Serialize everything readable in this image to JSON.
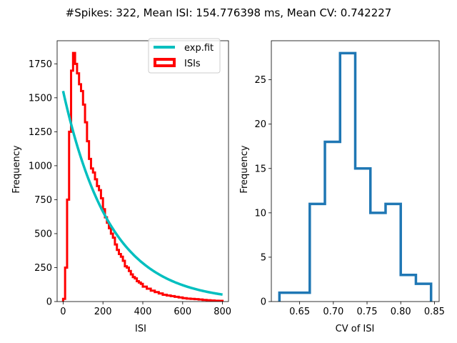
{
  "figure": {
    "suptitle": "#Spikes: 322, Mean ISI: 154.776398 ms, Mean CV: 0.742227"
  },
  "colors": {
    "isi_hist": "#ff0000",
    "exp_fit": "#00bfbf",
    "cv_hist": "#1f77b4",
    "axes": "#000000"
  },
  "chart_data": [
    {
      "type": "line",
      "panel": "left",
      "xlabel": "ISI",
      "ylabel": "Frequency",
      "xlim": [
        -30,
        830
      ],
      "ylim": [
        0,
        1920
      ],
      "xticks": [
        0,
        200,
        400,
        600,
        800
      ],
      "yticks": [
        0,
        250,
        500,
        750,
        1000,
        1250,
        1500,
        1750
      ],
      "legend": {
        "location": "top-right",
        "entries": [
          "exp.fit",
          "ISIs"
        ]
      },
      "series": [
        {
          "name": "ISIs",
          "style": "step",
          "bin_edges": [
            0,
            10,
            20,
            30,
            40,
            50,
            60,
            70,
            80,
            90,
            100,
            110,
            120,
            130,
            140,
            150,
            160,
            170,
            180,
            190,
            200,
            210,
            220,
            230,
            240,
            250,
            260,
            270,
            280,
            290,
            300,
            310,
            320,
            330,
            340,
            350,
            360,
            370,
            380,
            390,
            400,
            420,
            440,
            460,
            480,
            500,
            520,
            540,
            560,
            580,
            600,
            620,
            640,
            660,
            680,
            700,
            720,
            740,
            760,
            780,
            800
          ],
          "counts": [
            20,
            250,
            750,
            1250,
            1700,
            1830,
            1750,
            1680,
            1600,
            1550,
            1450,
            1320,
            1180,
            1050,
            980,
            950,
            900,
            850,
            820,
            760,
            680,
            620,
            580,
            540,
            500,
            470,
            420,
            380,
            350,
            330,
            300,
            260,
            250,
            225,
            200,
            180,
            170,
            150,
            140,
            130,
            110,
            95,
            80,
            70,
            60,
            50,
            45,
            40,
            35,
            30,
            25,
            22,
            20,
            18,
            15,
            12,
            10,
            8,
            6,
            5
          ]
        },
        {
          "name": "exp.fit",
          "style": "line",
          "x0": 0,
          "x1": 800,
          "amplitude": 1550,
          "tau": 235
        }
      ]
    },
    {
      "type": "line",
      "panel": "right",
      "xlabel": "CV of ISI",
      "ylabel": "Frequency",
      "xlim": [
        0.608,
        0.857
      ],
      "ylim": [
        0,
        29.4
      ],
      "xticks": [
        "0.65",
        "0.70",
        "0.75",
        "0.80",
        "0.85"
      ],
      "yticks": [
        0,
        5,
        10,
        15,
        20,
        25
      ],
      "series": [
        {
          "style": "step",
          "bin_edges": [
            0.62,
            0.6425,
            0.665,
            0.6875,
            0.71,
            0.7325,
            0.755,
            0.7775,
            0.8,
            0.8225,
            0.845
          ],
          "counts": [
            1,
            1,
            11,
            18,
            28,
            15,
            10,
            11,
            3,
            2
          ]
        }
      ]
    }
  ]
}
